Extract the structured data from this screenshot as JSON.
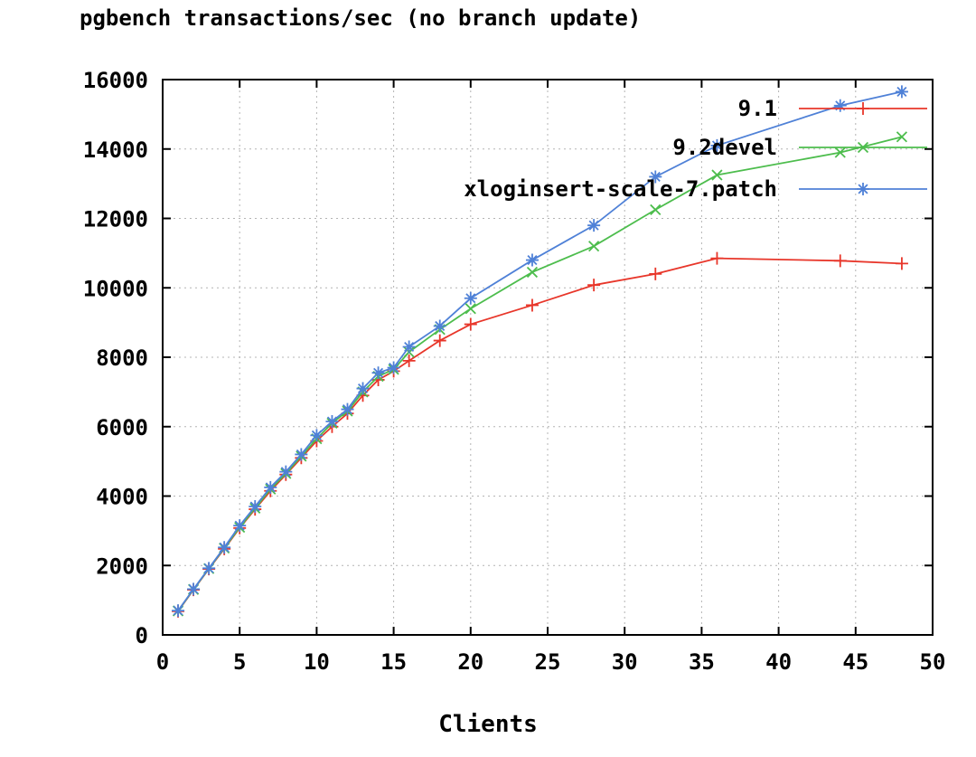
{
  "chart_data": {
    "type": "line",
    "title": "pgbench transactions/sec (no branch update)",
    "xlabel": "Clients",
    "ylabel": "",
    "xlim": [
      0,
      50
    ],
    "ylim": [
      0,
      16000
    ],
    "xticks": [
      0,
      5,
      10,
      15,
      20,
      25,
      30,
      35,
      40,
      45,
      50
    ],
    "yticks": [
      0,
      2000,
      4000,
      6000,
      8000,
      10000,
      12000,
      14000,
      16000
    ],
    "grid": true,
    "legend_position": "top-right",
    "x": [
      1,
      2,
      3,
      4,
      5,
      6,
      7,
      8,
      9,
      10,
      11,
      12,
      13,
      14,
      15,
      16,
      18,
      20,
      24,
      28,
      32,
      36,
      44,
      48
    ],
    "series": [
      {
        "name": "9.1",
        "color": "#e8362a",
        "marker": "plus",
        "values": [
          680,
          1300,
          1900,
          2480,
          3080,
          3620,
          4150,
          4620,
          5100,
          5590,
          6000,
          6380,
          6900,
          7350,
          7600,
          7900,
          8480,
          8950,
          9500,
          10080,
          10400,
          10850,
          10780,
          10700
        ]
      },
      {
        "name": "9.2devel",
        "color": "#4dbd4d",
        "marker": "cross",
        "values": [
          690,
          1310,
          1910,
          2500,
          3100,
          3650,
          4200,
          4650,
          5150,
          5650,
          6100,
          6450,
          7000,
          7450,
          7650,
          8150,
          8800,
          9400,
          10450,
          11200,
          12250,
          13250,
          13900,
          14350
        ]
      },
      {
        "name": "xloginsert-scale-7.patch",
        "color": "#4f81d7",
        "marker": "asterisk",
        "values": [
          700,
          1320,
          1920,
          2520,
          3150,
          3700,
          4250,
          4700,
          5200,
          5750,
          6150,
          6500,
          7100,
          7550,
          7700,
          8300,
          8900,
          9700,
          10800,
          11800,
          13200,
          14100,
          15250,
          15650
        ]
      }
    ]
  }
}
